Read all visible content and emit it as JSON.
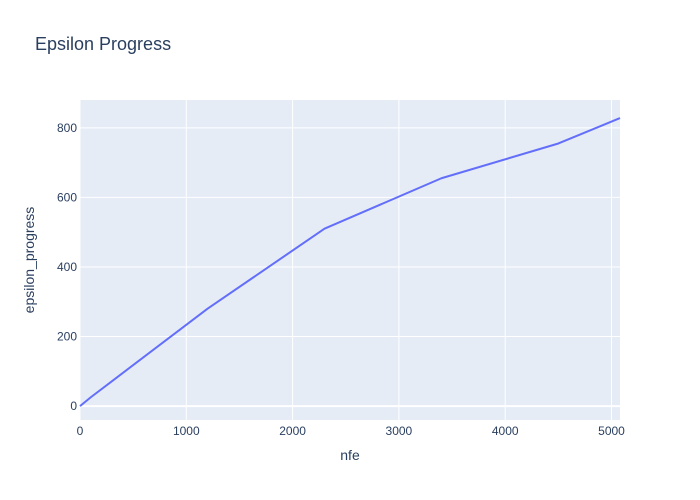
{
  "chart_data": {
    "type": "line",
    "title": "Epsilon Progress",
    "xlabel": "nfe",
    "ylabel": "epsilon_progress",
    "xlim": [
      0,
      5080
    ],
    "ylim": [
      -40,
      880
    ],
    "xticks": [
      0,
      1000,
      2000,
      3000,
      4000,
      5000
    ],
    "yticks": [
      0,
      200,
      400,
      600,
      800
    ],
    "xtick_labels": [
      "0",
      "1000",
      "2000",
      "3000",
      "4000",
      "5000"
    ],
    "ytick_labels": [
      "0",
      "200",
      "400",
      "600",
      "800"
    ],
    "grid": true,
    "colors": {
      "plot_bg": "#e5ecf6",
      "grid": "#ffffff",
      "line": "#636efa",
      "text": "#2a3f5f"
    },
    "series": [
      {
        "x": [
          0,
          100,
          1200,
          2300,
          3400,
          4500,
          5080
        ],
        "y": [
          0,
          25,
          280,
          510,
          655,
          755,
          828
        ]
      }
    ]
  }
}
